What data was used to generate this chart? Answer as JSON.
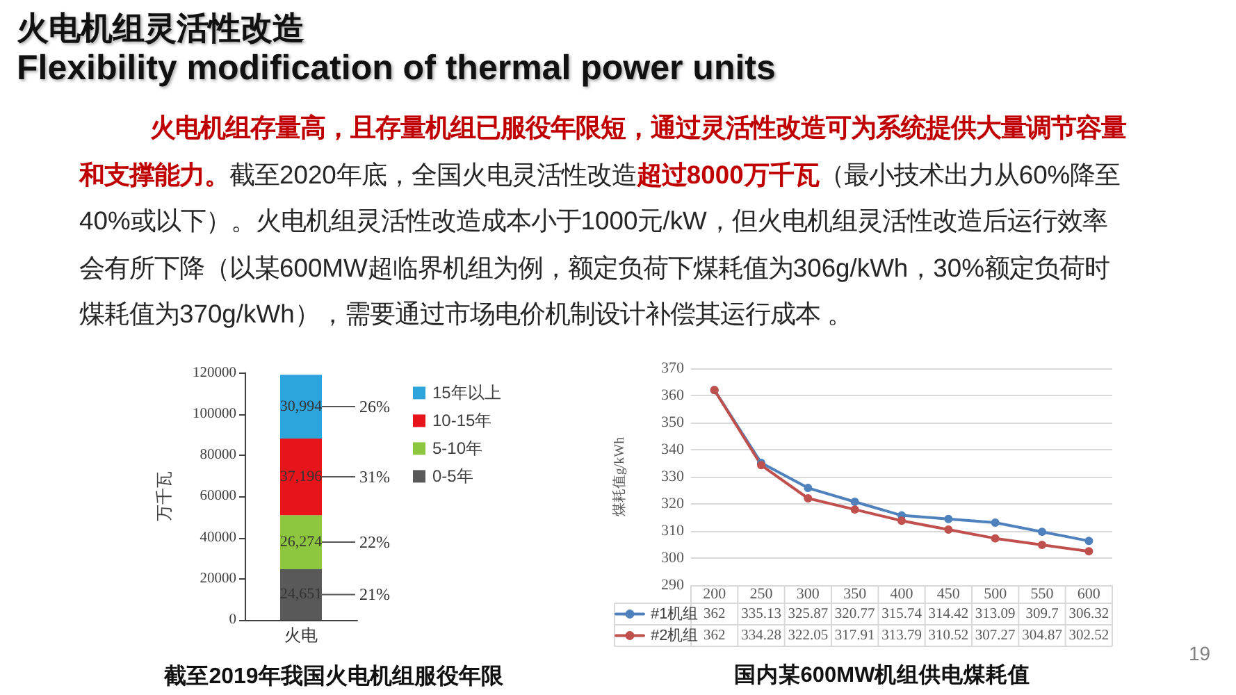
{
  "chart_data": [
    {
      "type": "other",
      "title": "火电机组灵活性改造",
      "subtitle": "Flexibility modification of thermal power units",
      "annotations": [
        "火电机组存量高，且存量机组已服役年限短，通过灵活性改造可为系统提供大量调节容量",
        "和支撑能力。",
        "截至2020年底，全国火电灵活性改造",
        "超过8000万千瓦",
        "（最小技术出力从60%降至",
        "40%或以下）。火电机组灵活性改造成本小于1000元/kW，但火电机组灵活性改造后运行效率",
        "会有所下降（以某600MW超临界机组为例，额定负荷下煤耗值为306g/kWh，30%额定负荷时",
        "煤耗值为370g/kWh），需要通过市场电价机制设计补偿其运行成本 。",
        "19"
      ]
    },
    {
      "type": "bar",
      "title": "截至2019年我国火电机组服役年限",
      "ylabel": "万千瓦",
      "categories": [
        "火电"
      ],
      "stacked": true,
      "series": [
        {
          "name": "0-5年",
          "color": "#595959",
          "values": [
            24651
          ],
          "value_labels": [
            "24,651"
          ]
        },
        {
          "name": "5-10年",
          "color": "#8dc63f",
          "values": [
            26274
          ],
          "value_labels": [
            "26,274"
          ]
        },
        {
          "name": "10-15年",
          "color": "#e8141b",
          "values": [
            37196
          ],
          "value_labels": [
            "37,196"
          ]
        },
        {
          "name": "15年以上",
          "color": "#2da4dc",
          "values": [
            30994
          ],
          "value_labels": [
            "30,994"
          ]
        }
      ],
      "ylim": [
        0,
        120000
      ],
      "yticks": [
        0,
        20000,
        40000,
        60000,
        80000,
        100000,
        120000
      ],
      "legend": "right",
      "annotations": [
        "21%",
        "22%",
        "31%",
        "26%"
      ]
    },
    {
      "type": "line",
      "title": "国内某600MW机组供电煤耗值",
      "ylabel": "煤耗值g/kWh",
      "categories": [
        "200",
        "250",
        "300",
        "350",
        "400",
        "450",
        "500",
        "550",
        "600"
      ],
      "series": [
        {
          "name": "#1机组",
          "color": "#4f81bd",
          "values": [
            362,
            335.13,
            325.87,
            320.77,
            315.74,
            314.42,
            313.09,
            309.7,
            306.32
          ]
        },
        {
          "name": "#2机组",
          "color": "#c0504d",
          "values": [
            362,
            334.28,
            322.05,
            317.91,
            313.79,
            310.52,
            307.27,
            304.87,
            302.52
          ]
        }
      ],
      "ylim": [
        290,
        370
      ],
      "yticks": [
        290,
        300,
        310,
        320,
        330,
        340,
        350,
        360,
        370
      ],
      "grid": "y",
      "legend": "bottom left",
      "marker": "circle",
      "data_labels": true
    }
  ]
}
